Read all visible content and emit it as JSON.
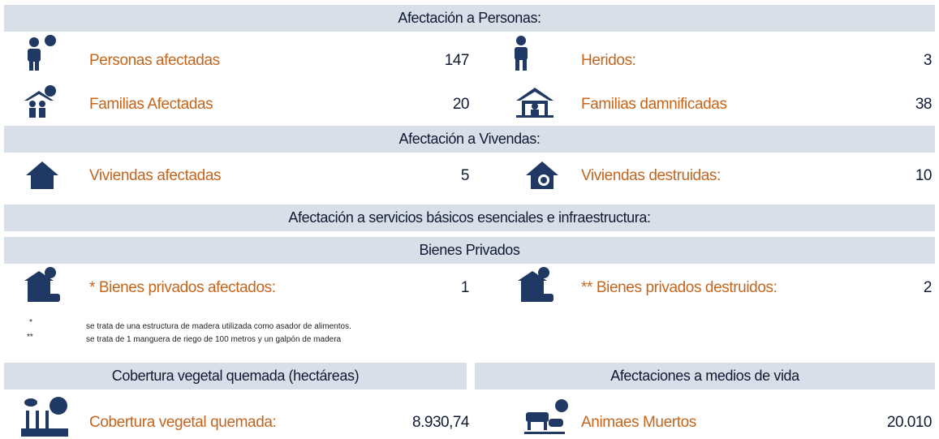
{
  "personas": {
    "title": "Afectación a Personas:",
    "items": [
      {
        "label": "Personas afectadas",
        "value": "147"
      },
      {
        "label": "Heridos:",
        "value": "3"
      },
      {
        "label": "Familias Afectadas",
        "value": "20"
      },
      {
        "label": "Familias damnificadas",
        "value": "38"
      }
    ]
  },
  "viviendas": {
    "title": "Afectación a Vivendas:",
    "items": [
      {
        "label": "Viviendas afectadas",
        "value": "5"
      },
      {
        "label": "Viviendas destruidas:",
        "value": "10"
      }
    ]
  },
  "servicios": {
    "title": "Afectación a servicios básicos esenciales e infraestructura:"
  },
  "bienes": {
    "title": "Bienes Privados",
    "items": [
      {
        "label": "* Bienes privados afectados:",
        "value": "1"
      },
      {
        "label": "** Bienes privados destruidos:",
        "value": "2"
      }
    ],
    "notes": [
      {
        "mark": "*",
        "text": "se trata de una estructura de madera utilizada como asador de alimentos."
      },
      {
        "mark": "**",
        "text": "se trata de 1 manguera de riego de 100 metros y un galpón de madera"
      }
    ]
  },
  "cobertura": {
    "title": "Cobertura vegetal quemada (hectáreas)",
    "item": {
      "label": "Cobertura vegetal quemada:",
      "value": "8.930,74"
    }
  },
  "medios": {
    "title": "Afectaciones a medios de vida",
    "item": {
      "label": "Animaes Muertos",
      "value": "20.010"
    }
  }
}
